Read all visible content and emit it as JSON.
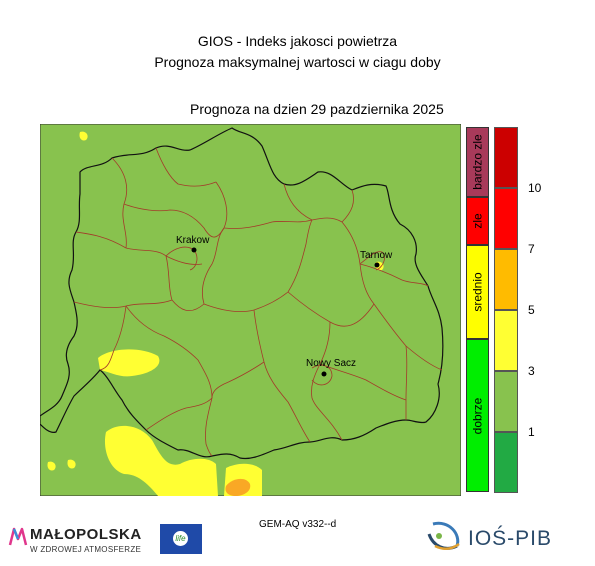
{
  "header": {
    "title": "GIOS - Indeks jakosci powietrza",
    "subtitle": "Prognoza maksymalnej wartosci w ciagu doby",
    "date_line": "Prognoza na dzien  29 pazdziernika 2025"
  },
  "map": {
    "background_color": "#88c24e",
    "good_zone_color": "#ffff33",
    "warning_zone_color": "#f9b233",
    "border_color": "#111111",
    "district_color": "#a33a2a",
    "cities": [
      {
        "name": "Krakow"
      },
      {
        "name": "Tarnow"
      },
      {
        "name": "Nowy Sacz"
      }
    ]
  },
  "legend": {
    "categories": [
      {
        "label": "bardzo zle",
        "color": "#a83a5a"
      },
      {
        "label": "zle",
        "color": "#ff0000"
      },
      {
        "label": "srednio",
        "color": "#ffff00"
      },
      {
        "label": "dobrze",
        "color": "#00ee00"
      }
    ],
    "scale_colors": [
      "#cc0000",
      "#ff0000",
      "#ffbb00",
      "#ffff33",
      "#88c24e",
      "#22aa44"
    ],
    "scale_values": [
      "10",
      "7",
      "5",
      "3",
      "1"
    ]
  },
  "footer": {
    "model": "GEM-AQ v332--d",
    "logo_malopolska": "MAŁOPOLSKA",
    "logo_malopolska_sub": "W ZDROWEJ ATMOSFERZE",
    "logo_ios": "IOŚ-PIB",
    "logo_eu": "life"
  }
}
